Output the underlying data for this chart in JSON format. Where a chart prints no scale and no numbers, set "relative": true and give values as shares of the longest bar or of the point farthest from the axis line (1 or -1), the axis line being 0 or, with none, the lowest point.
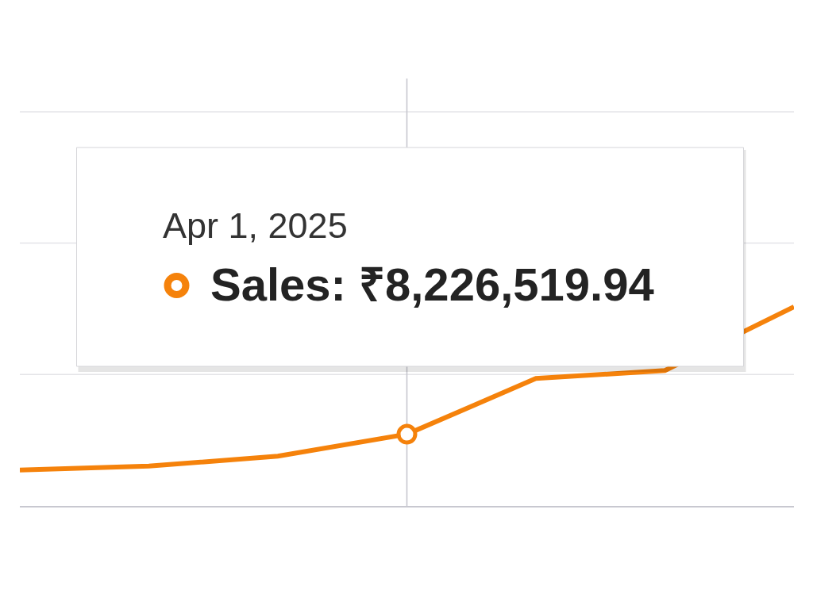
{
  "chart_data": {
    "type": "line",
    "relative": true,
    "categories": [
      null,
      null,
      null,
      null,
      null,
      null,
      null
    ],
    "series": [
      {
        "color": "#f5820b",
        "values": [
          0.18,
          0.2,
          0.25,
          0.36,
          0.64,
          0.68,
          1.0
        ]
      }
    ],
    "ref_lines": [
      {
        "axis": "y",
        "value": 0.66,
        "color": "#e4e4e8"
      },
      {
        "axis": "y",
        "value": 1.32,
        "color": "#e4e4e8"
      },
      {
        "axis": "y",
        "value": 1.98,
        "color": "#e4e4e8"
      }
    ],
    "annotations": [
      "Apr 1, 2025",
      "Sales: ₹8,226,519.94"
    ]
  }
}
